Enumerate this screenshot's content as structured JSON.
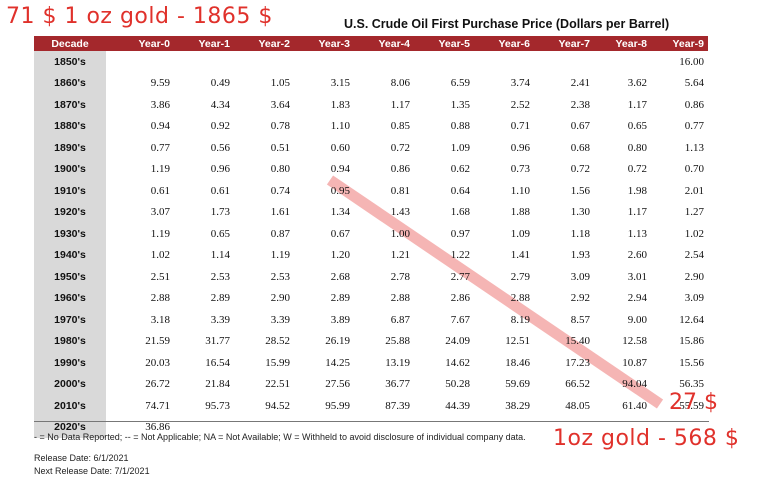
{
  "annotations": {
    "top_left": "71 $  1 oz gold - 1865 $",
    "bottom_price": "27 $",
    "bottom_gold": "1oz gold - 568 $"
  },
  "colors": {
    "header_bg": "#a4282c",
    "decade_bg": "#d9d9d9",
    "annotation": "#e0312b",
    "trend_line": "#f4a9a8"
  },
  "footer": {
    "legend": "- = No Data Reported;  -- = Not Applicable;  NA = Not Available;  W = Withheld to avoid disclosure of individual company data.",
    "release_date": "Release Date: 6/1/2021",
    "next_release": "Next Release Date: 7/1/2021"
  },
  "chart_data": {
    "type": "table",
    "title": "U.S. Crude Oil First Purchase Price (Dollars per Barrel)",
    "columns": [
      "Decade",
      "Year-0",
      "Year-1",
      "Year-2",
      "Year-3",
      "Year-4",
      "Year-5",
      "Year-6",
      "Year-7",
      "Year-8",
      "Year-9"
    ],
    "rows": [
      [
        "1850's",
        "",
        "",
        "",
        "",
        "",
        "",
        "",
        "",
        "",
        "16.00"
      ],
      [
        "1860's",
        "9.59",
        "0.49",
        "1.05",
        "3.15",
        "8.06",
        "6.59",
        "3.74",
        "2.41",
        "3.62",
        "5.64"
      ],
      [
        "1870's",
        "3.86",
        "4.34",
        "3.64",
        "1.83",
        "1.17",
        "1.35",
        "2.52",
        "2.38",
        "1.17",
        "0.86"
      ],
      [
        "1880's",
        "0.94",
        "0.92",
        "0.78",
        "1.10",
        "0.85",
        "0.88",
        "0.71",
        "0.67",
        "0.65",
        "0.77"
      ],
      [
        "1890's",
        "0.77",
        "0.56",
        "0.51",
        "0.60",
        "0.72",
        "1.09",
        "0.96",
        "0.68",
        "0.80",
        "1.13"
      ],
      [
        "1900's",
        "1.19",
        "0.96",
        "0.80",
        "0.94",
        "0.86",
        "0.62",
        "0.73",
        "0.72",
        "0.72",
        "0.70"
      ],
      [
        "1910's",
        "0.61",
        "0.61",
        "0.74",
        "0.95",
        "0.81",
        "0.64",
        "1.10",
        "1.56",
        "1.98",
        "2.01"
      ],
      [
        "1920's",
        "3.07",
        "1.73",
        "1.61",
        "1.34",
        "1.43",
        "1.68",
        "1.88",
        "1.30",
        "1.17",
        "1.27"
      ],
      [
        "1930's",
        "1.19",
        "0.65",
        "0.87",
        "0.67",
        "1.00",
        "0.97",
        "1.09",
        "1.18",
        "1.13",
        "1.02"
      ],
      [
        "1940's",
        "1.02",
        "1.14",
        "1.19",
        "1.20",
        "1.21",
        "1.22",
        "1.41",
        "1.93",
        "2.60",
        "2.54"
      ],
      [
        "1950's",
        "2.51",
        "2.53",
        "2.53",
        "2.68",
        "2.78",
        "2.77",
        "2.79",
        "3.09",
        "3.01",
        "2.90"
      ],
      [
        "1960's",
        "2.88",
        "2.89",
        "2.90",
        "2.89",
        "2.88",
        "2.86",
        "2.88",
        "2.92",
        "2.94",
        "3.09"
      ],
      [
        "1970's",
        "3.18",
        "3.39",
        "3.39",
        "3.89",
        "6.87",
        "7.67",
        "8.19",
        "8.57",
        "9.00",
        "12.64"
      ],
      [
        "1980's",
        "21.59",
        "31.77",
        "28.52",
        "26.19",
        "25.88",
        "24.09",
        "12.51",
        "15.40",
        "12.58",
        "15.86"
      ],
      [
        "1990's",
        "20.03",
        "16.54",
        "15.99",
        "14.25",
        "13.19",
        "14.62",
        "18.46",
        "17.23",
        "10.87",
        "15.56"
      ],
      [
        "2000's",
        "26.72",
        "21.84",
        "22.51",
        "27.56",
        "36.77",
        "50.28",
        "59.69",
        "66.52",
        "94.04",
        "56.35"
      ],
      [
        "2010's",
        "74.71",
        "95.73",
        "94.52",
        "95.99",
        "87.39",
        "44.39",
        "38.29",
        "48.05",
        "61.40",
        "55.59"
      ],
      [
        "2020's",
        "36.86",
        "",
        "",
        "",
        "",
        "",
        "",
        "",
        "",
        ""
      ]
    ]
  }
}
